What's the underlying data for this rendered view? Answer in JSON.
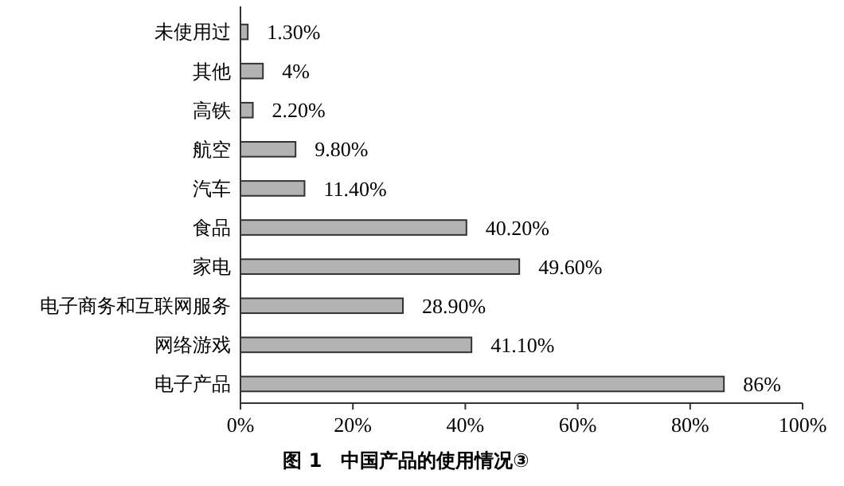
{
  "chart_data": {
    "type": "bar",
    "orientation": "horizontal",
    "title": "图 1　中国产品的使用情况③",
    "categories": [
      "未使用过",
      "其他",
      "高铁",
      "航空",
      "汽车",
      "食品",
      "家电",
      "电子商务和互联网服务",
      "网络游戏",
      "电子产品"
    ],
    "values": [
      1.3,
      4,
      2.2,
      9.8,
      11.4,
      40.2,
      49.6,
      28.9,
      41.1,
      86
    ],
    "value_labels": [
      "1.30%",
      "4%",
      "2.20%",
      "9.80%",
      "11.40%",
      "40.20%",
      "49.60%",
      "28.90%",
      "41.10%",
      "86%"
    ],
    "color": "#b3b3b3",
    "xlim": [
      0,
      100
    ],
    "xticks": [
      {
        "value": 0,
        "label": "0%"
      },
      {
        "value": 20,
        "label": "20%"
      },
      {
        "value": 40,
        "label": "40%"
      },
      {
        "value": 60,
        "label": "60%"
      },
      {
        "value": 80,
        "label": "80%"
      },
      {
        "value": 100,
        "label": "100%"
      }
    ],
    "grid": false
  }
}
